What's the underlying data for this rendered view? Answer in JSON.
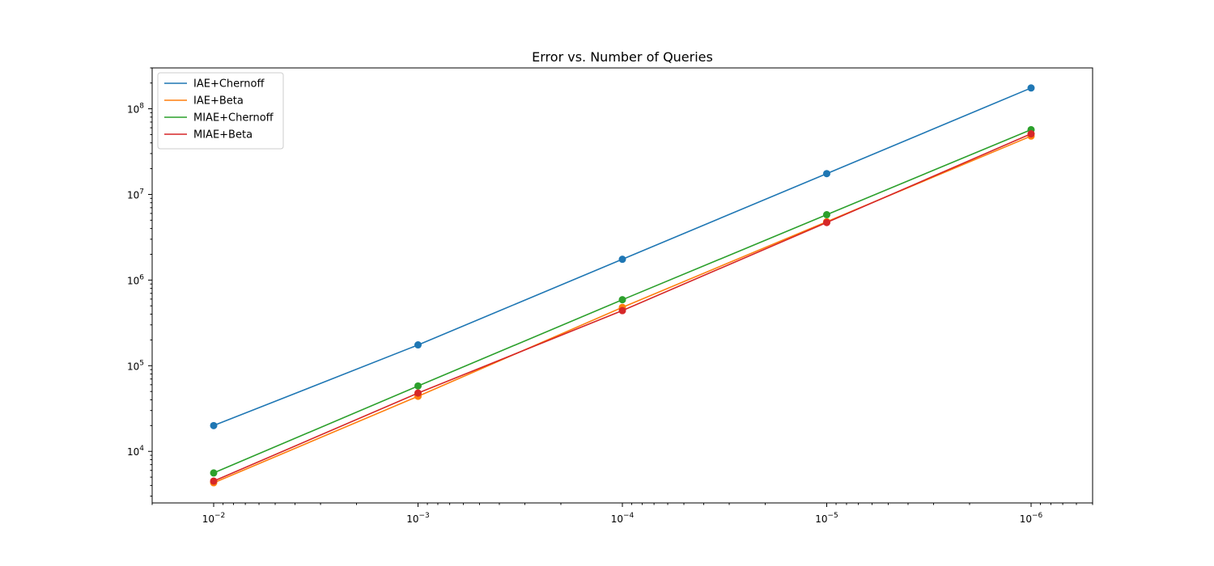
{
  "chart_data": {
    "type": "line",
    "title": "Error vs. Number of Queries",
    "xlabel": "",
    "ylabel": "",
    "x_scale": "log",
    "x_inverted": true,
    "y_scale": "log",
    "x_ticks": [
      "10^-2",
      "10^-3",
      "10^-4",
      "10^-5",
      "10^-6"
    ],
    "y_ticks": [
      "10^4",
      "10^5",
      "10^6",
      "10^7",
      "10^8"
    ],
    "xlim": [
      0.02,
      5e-07
    ],
    "ylim": [
      2500,
      300000000
    ],
    "x": [
      0.01,
      0.001,
      0.0001,
      1e-05,
      1e-06
    ],
    "legend_position": "upper-left",
    "grid": false,
    "series": [
      {
        "name": "IAE+Chernoff",
        "color": "#1f77b4",
        "values": [
          20000,
          175000,
          1750000,
          17500000,
          175000000
        ]
      },
      {
        "name": "IAE+Beta",
        "color": "#ff7f0e",
        "values": [
          4300,
          44000,
          480000,
          4800000,
          48000000
        ]
      },
      {
        "name": "MIAE+Chernoff",
        "color": "#2ca02c",
        "values": [
          5600,
          58000,
          590000,
          5800000,
          57000000
        ]
      },
      {
        "name": "MIAE+Beta",
        "color": "#d62728",
        "values": [
          4500,
          48000,
          440000,
          4700000,
          51000000
        ]
      }
    ]
  }
}
